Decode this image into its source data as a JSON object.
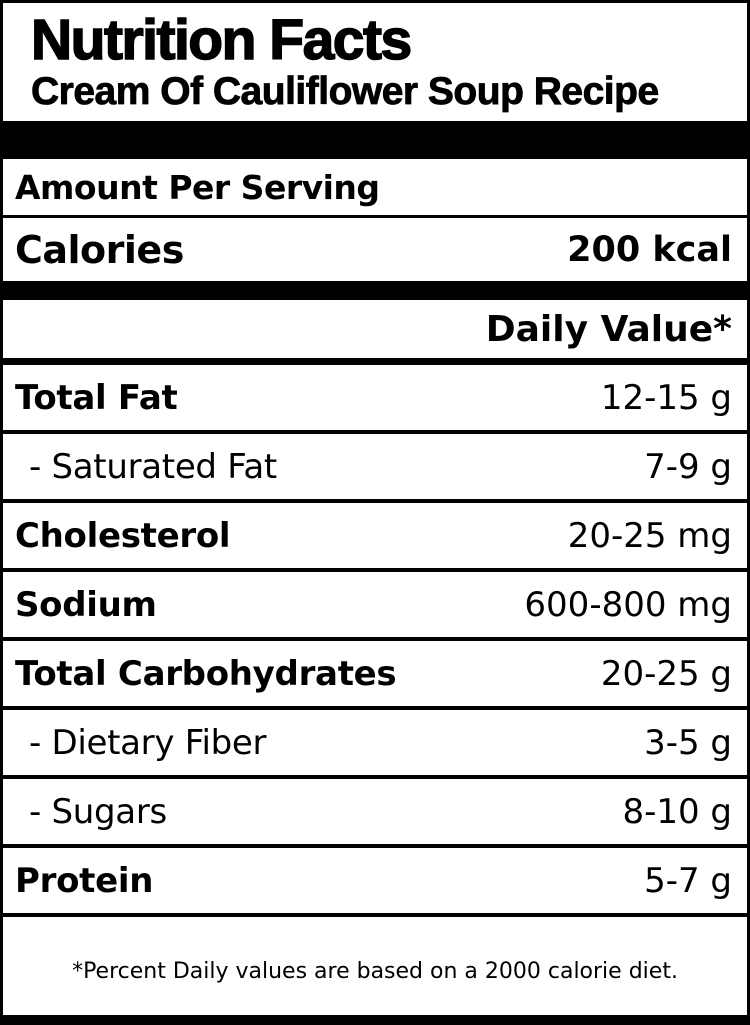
{
  "header": {
    "title": "Nutrition Facts",
    "subtitle": "Cream Of Cauliflower Soup Recipe"
  },
  "serving": {
    "amount_label": "Amount Per Serving",
    "calories_label": "Calories",
    "calories_value": "200 kcal"
  },
  "daily_value_header": "Daily Value*",
  "nutrients": [
    {
      "label": "Total Fat",
      "value": "12-15 g",
      "bold": true,
      "indent": false
    },
    {
      "label": "- Saturated Fat",
      "value": "7-9 g",
      "bold": false,
      "indent": true
    },
    {
      "label": "Cholesterol",
      "value": "20-25 mg",
      "bold": true,
      "indent": false
    },
    {
      "label": "Sodium",
      "value": "600-800 mg",
      "bold": true,
      "indent": false
    },
    {
      "label": "Total Carbohydrates",
      "value": "20-25 g",
      "bold": true,
      "indent": false
    },
    {
      "label": "- Dietary Fiber",
      "value": "3-5 g",
      "bold": false,
      "indent": true
    },
    {
      "label": "- Sugars",
      "value": "8-10 g",
      "bold": false,
      "indent": true
    },
    {
      "label": "Protein",
      "value": "5-7 g",
      "bold": true,
      "indent": false
    }
  ],
  "footer": {
    "note": "*Percent Daily values are based on a 2000 calorie diet."
  },
  "colors": {
    "ink": "#000000",
    "paper": "#ffffff"
  }
}
